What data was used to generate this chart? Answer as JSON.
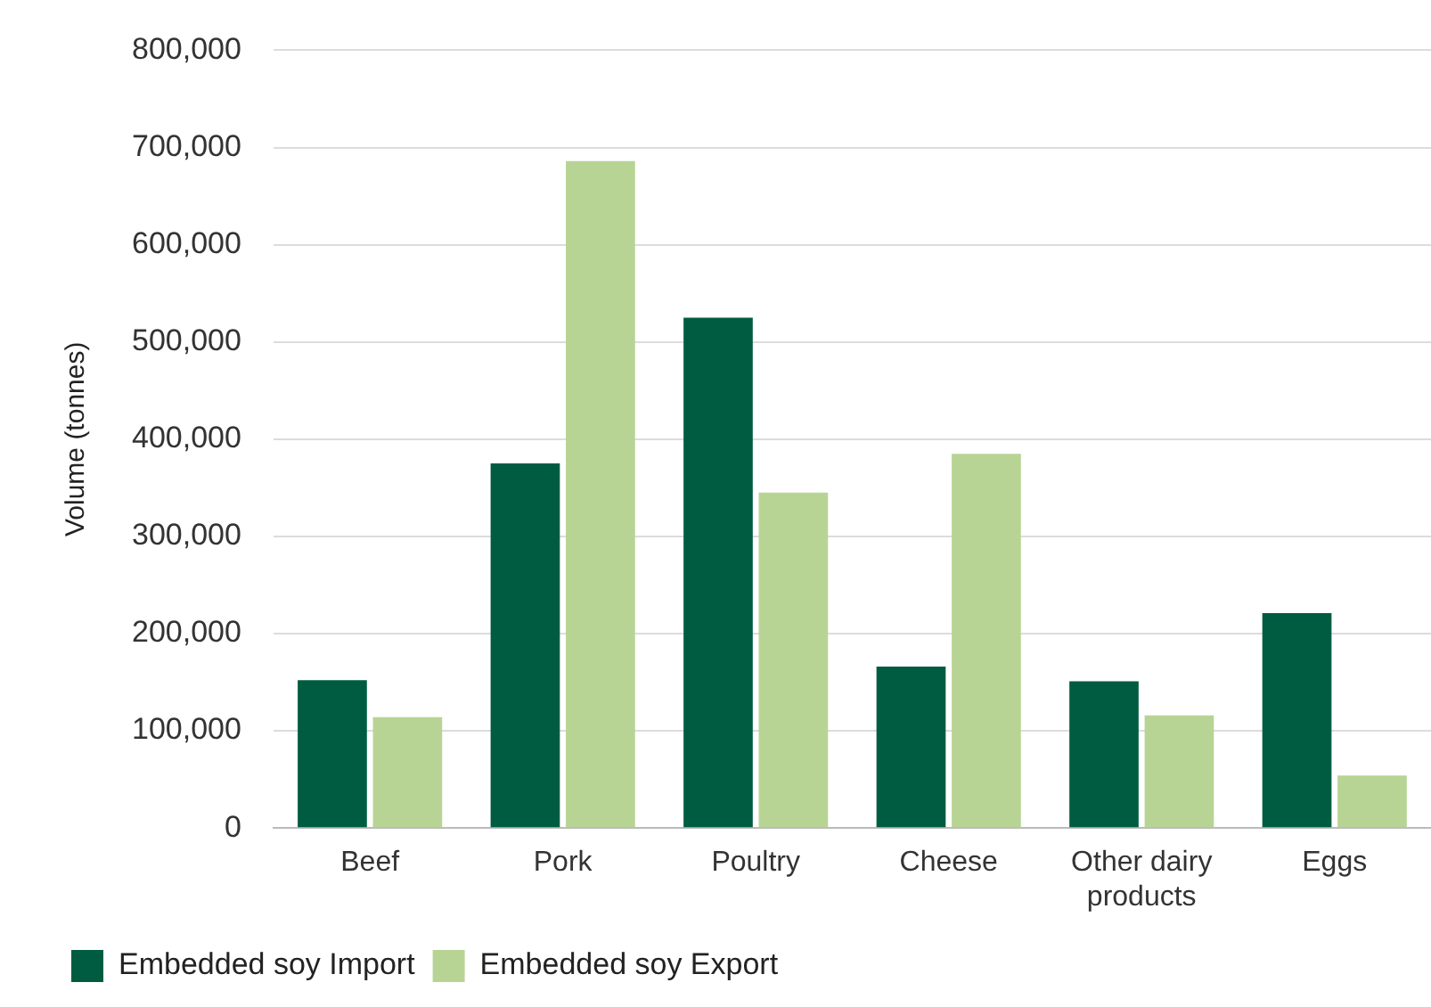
{
  "chart_data": {
    "type": "bar",
    "ylabel": "Volume (tonnes)",
    "categories": [
      "Beef",
      "Pork",
      "Poultry",
      "Cheese",
      "Other dairy products",
      "Eggs"
    ],
    "series": [
      {
        "name": "Embedded soy Import",
        "color": "#005c41",
        "values": [
          152000,
          375000,
          525000,
          166000,
          151000,
          221000
        ]
      },
      {
        "name": "Embedded soy Export",
        "color": "#b8d494",
        "values": [
          114000,
          686000,
          345000,
          385000,
          116000,
          54000
        ]
      }
    ],
    "ylim": [
      0,
      800000
    ],
    "yticks": [
      0,
      {
        "value": 100000,
        "label": "100,000"
      },
      {
        "value": 200000,
        "label": "200,000"
      },
      {
        "value": 300000,
        "label": "300,000"
      },
      {
        "value": 400000,
        "label": "400,000"
      },
      {
        "value": 500000,
        "label": "500,000"
      },
      {
        "value": 600000,
        "label": "600,000"
      },
      {
        "value": 700000,
        "label": "700,000"
      },
      {
        "value": 800000,
        "label": "800,000"
      }
    ],
    "grid": "y",
    "legend": "bottom"
  }
}
